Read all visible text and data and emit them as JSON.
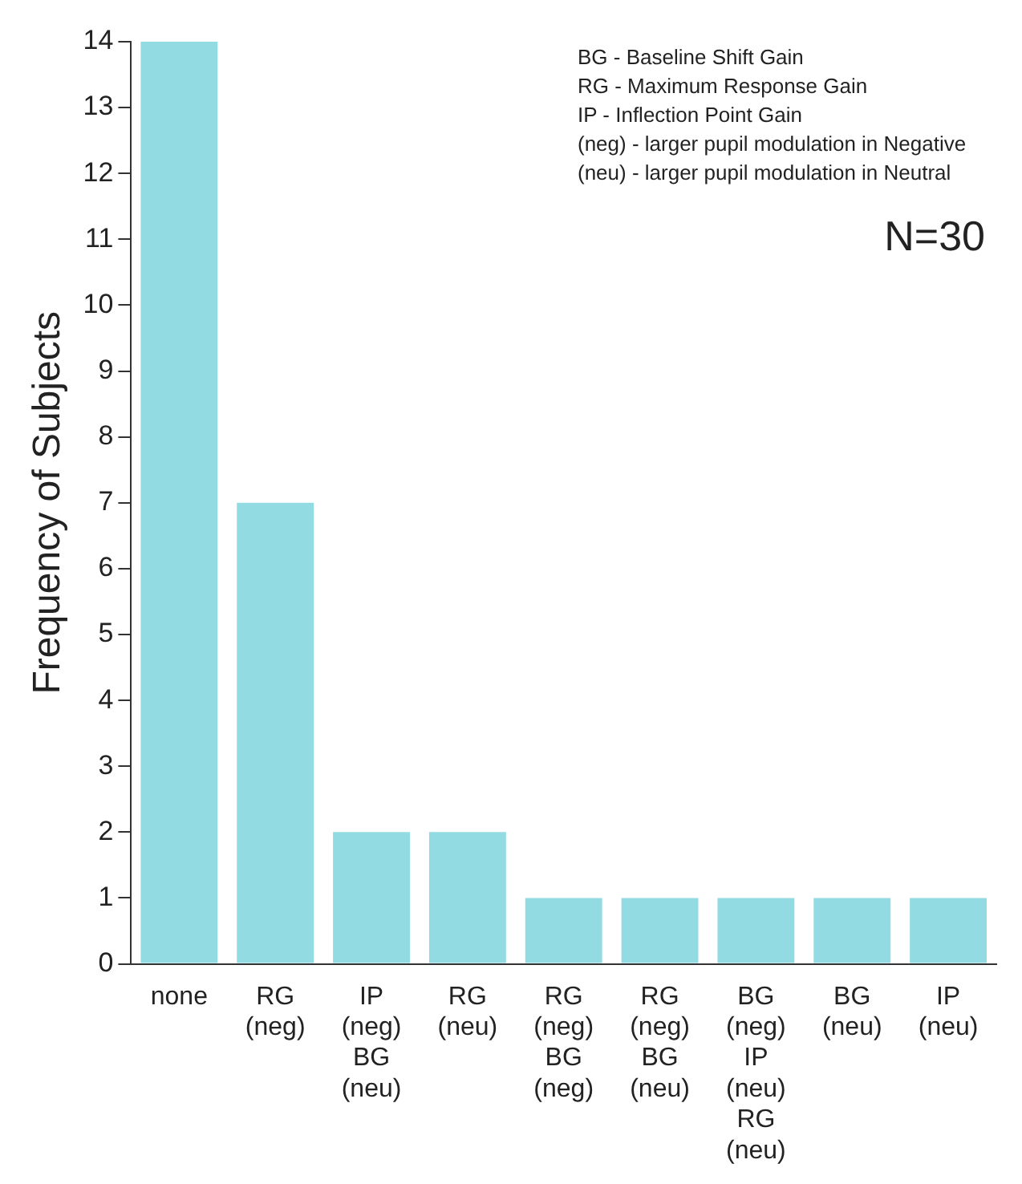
{
  "chart_data": {
    "type": "bar",
    "ylabel": "Frequency of Subjects",
    "categories": [
      "none",
      "RG\n(neg)",
      "IP\n(neg)\nBG\n(neu)",
      "RG\n(neu)",
      "RG\n(neg)\nBG\n(neg)",
      "RG\n(neg)\nBG\n(neu)",
      "BG\n(neg)\nIP\n(neu)\nRG\n(neu)",
      "BG\n(neu)",
      "IP\n(neu)"
    ],
    "values": [
      14,
      7,
      2,
      2,
      1,
      1,
      1,
      1,
      1
    ],
    "color": "#93dbe3",
    "ylim": [
      0,
      14
    ],
    "yticks": [
      0,
      1,
      2,
      3,
      4,
      5,
      6,
      7,
      8,
      9,
      10,
      11,
      12,
      13,
      14
    ],
    "grid": false,
    "legend": false,
    "annotations": [
      "BG - Baseline Shift Gain",
      "RG - Maximum Response Gain",
      "IP - Inflection Point Gain",
      "(neg) - larger pupil modulation in Negative",
      "(neu) - larger pupil modulation in Neutral",
      "N=30"
    ]
  }
}
